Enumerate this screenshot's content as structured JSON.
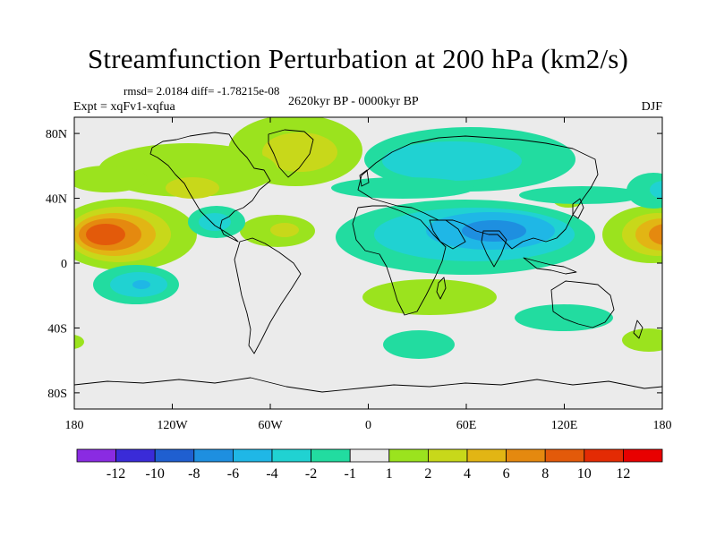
{
  "map": {
    "title": "Streamfunction Perturbation at 200 hPa (km2/s)",
    "stats": "rmsd= 2.0184 diff= -1.78215e-08",
    "experiment": "Expt = xqFv1-xqfua",
    "period": "2620kyr BP - 0000kyr BP",
    "season": "DJF",
    "lat_ticks": [
      {
        "value": 80,
        "label": "80N"
      },
      {
        "value": 40,
        "label": "40N"
      },
      {
        "value": 0,
        "label": "0"
      },
      {
        "value": -40,
        "label": "40S"
      },
      {
        "value": -80,
        "label": "80S"
      }
    ],
    "lon_ticks": [
      {
        "value": -180,
        "label": "180"
      },
      {
        "value": -120,
        "label": "120W"
      },
      {
        "value": -60,
        "label": "60W"
      },
      {
        "value": 0,
        "label": "0"
      },
      {
        "value": 60,
        "label": "60E"
      },
      {
        "value": 120,
        "label": "120E"
      },
      {
        "value": 180,
        "label": "180"
      }
    ],
    "lat_range": [
      -90,
      90
    ],
    "lon_range": [
      -180,
      180
    ]
  },
  "legend": {
    "colors": [
      "#8a2be2",
      "#3a2bd8",
      "#1f5fd0",
      "#1e8fe0",
      "#1fb7e6",
      "#20d2d2",
      "#22dca0",
      "#ebebeb",
      "#9be31e",
      "#c8d81a",
      "#e2b514",
      "#e5890f",
      "#e35a0a",
      "#e42b04",
      "#e80000"
    ],
    "labels": [
      "-12",
      "-10",
      "-8",
      "-6",
      "-4",
      "-2",
      "-1",
      "1",
      "2",
      "4",
      "6",
      "8",
      "10",
      "12"
    ]
  },
  "field_colors": {
    "background": "#ebebeb",
    "neg1": "#22dca0",
    "neg2": "#20d2d2",
    "neg4": "#1fb7e6",
    "neg6": "#1e8fe0",
    "pos2": "#9be31e",
    "pos4": "#c8d81a",
    "pos6": "#e2b514",
    "pos8": "#e5890f",
    "pos10": "#e35a0a"
  }
}
